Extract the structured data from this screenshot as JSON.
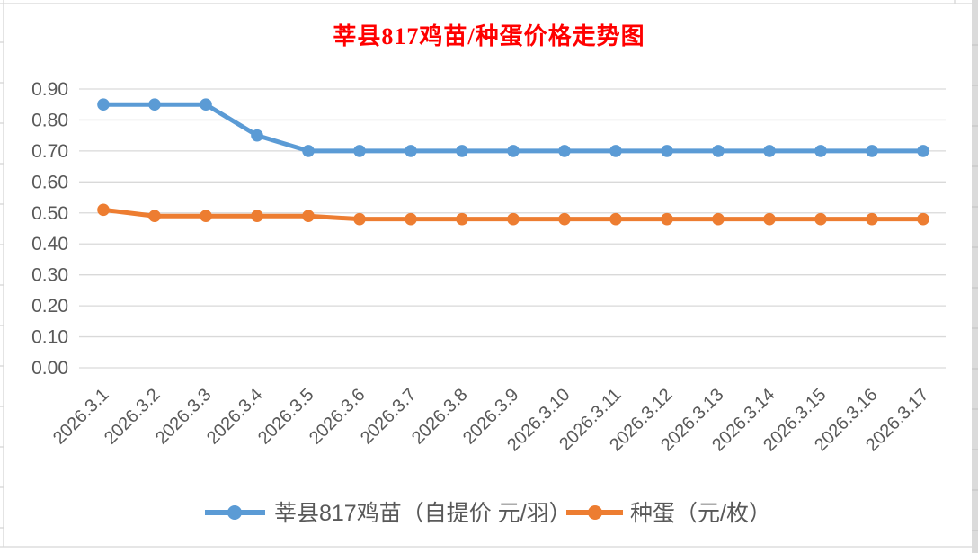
{
  "title": {
    "text": "莘县817鸡苗/种蛋价格走势图",
    "color": "#FF0000"
  },
  "chart_data": {
    "type": "line",
    "title": "莘县817鸡苗/种蛋价格走势图",
    "categories": [
      "2026.3.1",
      "2026.3.2",
      "2026.3.3",
      "2026.3.4",
      "2026.3.5",
      "2026.3.6",
      "2026.3.7",
      "2026.3.8",
      "2026.3.9",
      "2026.3.10",
      "2026.3.11",
      "2026.3.12",
      "2026.3.13",
      "2026.3.14",
      "2026.3.15",
      "2026.3.16",
      "2026.3.17"
    ],
    "series": [
      {
        "name": "莘县817鸡苗（自提价 元/羽）",
        "color": "#5B9BD5",
        "values": [
          0.85,
          0.85,
          0.85,
          0.75,
          0.7,
          0.7,
          0.7,
          0.7,
          0.7,
          0.7,
          0.7,
          0.7,
          0.7,
          0.7,
          0.7,
          0.7,
          0.7
        ]
      },
      {
        "name": "种蛋（元/枚）",
        "color": "#ED7D31",
        "values": [
          0.51,
          0.49,
          0.49,
          0.49,
          0.49,
          0.48,
          0.48,
          0.48,
          0.48,
          0.48,
          0.48,
          0.48,
          0.48,
          0.48,
          0.48,
          0.48,
          0.48
        ]
      }
    ],
    "xlabel": "",
    "ylabel": "",
    "ylim": [
      0.0,
      0.9
    ],
    "y_tick_step": 0.1,
    "y_tick_labels": [
      "0.00",
      "0.10",
      "0.20",
      "0.30",
      "0.40",
      "0.50",
      "0.60",
      "0.70",
      "0.80",
      "0.90"
    ],
    "grid": true,
    "legend_position": "bottom",
    "colors": {
      "axis_label": "#595959",
      "gridline": "#D9D9D9",
      "spreadsheet_artifact": "#D6D6D6"
    }
  }
}
